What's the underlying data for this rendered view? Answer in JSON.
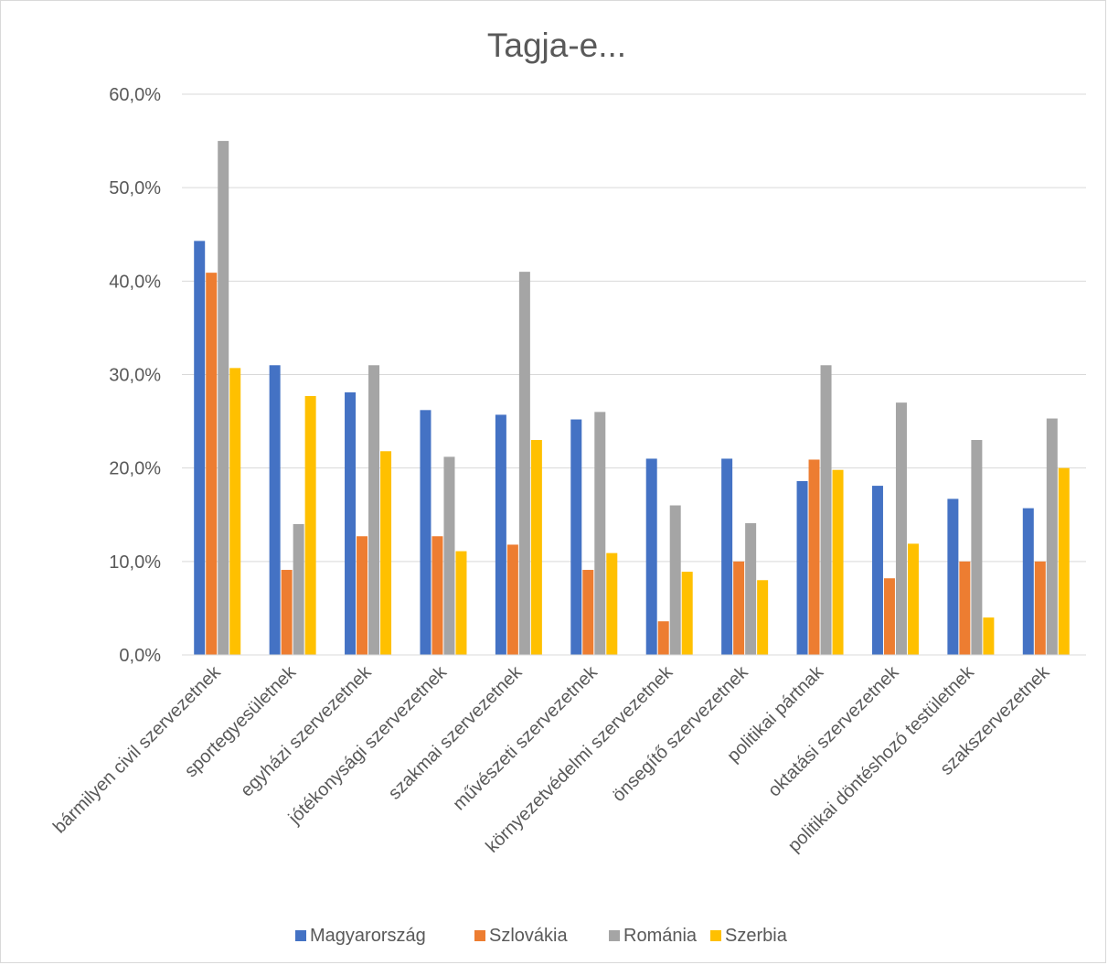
{
  "chart_data": {
    "type": "bar",
    "title": "Tagja-e...",
    "xlabel": "",
    "ylabel": "",
    "ylim": [
      0,
      60
    ],
    "yticks": [
      0,
      10,
      20,
      30,
      40,
      50,
      60
    ],
    "ytick_labels": [
      "0,0%",
      "10,0%",
      "20,0%",
      "30,0%",
      "40,0%",
      "50,0%",
      "60,0%"
    ],
    "grid": true,
    "legend_position": "bottom",
    "categories": [
      "bármilyen civil szervezetnek",
      "sportegyesületnek",
      "egyházi szervezetnek",
      "jótékonysági szervezetnek",
      "szakmai szervezetnek",
      "művészeti szervezetnek",
      "környezetvédelmi szervezetnek",
      "önsegítő szervezetnek",
      "politikai pártnak",
      "oktatási szervezetnek",
      "politikai döntéshozó testületnek",
      "szakszervezetnek"
    ],
    "series": [
      {
        "name": "Magyarország",
        "color": "#4472C4",
        "values": [
          44.3,
          31.0,
          28.1,
          26.2,
          25.7,
          25.2,
          21.0,
          21.0,
          18.6,
          18.1,
          16.7,
          15.7
        ]
      },
      {
        "name": "Szlovákia",
        "color": "#ED7D31",
        "values": [
          40.9,
          9.1,
          12.7,
          12.7,
          11.8,
          9.1,
          3.6,
          10.0,
          20.9,
          8.2,
          10.0,
          10.0
        ]
      },
      {
        "name": "Románia",
        "color": "#A5A5A5",
        "values": [
          55.0,
          14.0,
          31.0,
          21.2,
          41.0,
          26.0,
          16.0,
          14.1,
          31.0,
          27.0,
          23.0,
          25.3
        ]
      },
      {
        "name": "Szerbia",
        "color": "#FFC000",
        "values": [
          30.7,
          27.7,
          21.8,
          11.1,
          23.0,
          10.9,
          8.9,
          8.0,
          19.8,
          11.9,
          4.0,
          20.0
        ]
      }
    ]
  }
}
